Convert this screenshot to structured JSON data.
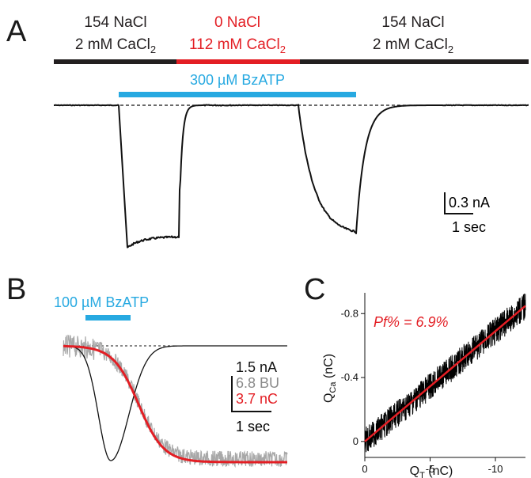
{
  "panels": {
    "A": {
      "letter": "A",
      "conditions": [
        {
          "line1": "154 NaCl",
          "line2_main": "2 mM CaCl",
          "line2_sub": "2",
          "color": "#231f20"
        },
        {
          "line1": "0 NaCl",
          "line2_main": "112 mM CaCl",
          "line2_sub": "2",
          "color": "#e31e24"
        },
        {
          "line1": "154 NaCl",
          "line2_main": "2 mM CaCl",
          "line2_sub": "2",
          "color": "#231f20"
        }
      ],
      "agonist_label": "300 µM BzATP",
      "agonist_color": "#27a9e1",
      "scale_current": "0.3 nA",
      "scale_time": "1 sec"
    },
    "B": {
      "letter": "B",
      "agonist_label": "100 µM BzATP",
      "agonist_color": "#27a9e1",
      "scale_labels": [
        {
          "text": "1.5 nA",
          "color": "#111111"
        },
        {
          "text": "6.8 BU",
          "color": "#8a8a8a"
        },
        {
          "text": "3.7 nC",
          "color": "#e31e24"
        }
      ],
      "scale_time": "1 sec"
    },
    "C": {
      "letter": "C",
      "annotation": "Pf% = 6.9%",
      "annotation_color": "#e31e24"
    }
  },
  "chart_data": [
    {
      "type": "line",
      "panel": "A",
      "series": [
        {
          "name": "",
          "note": "whole-cell current trace with two inward responses to BzATP",
          "peak_relative": [
            -1.0,
            -0.93
          ],
          "color": "#000000"
        }
      ]
    },
    {
      "type": "line",
      "panel": "B",
      "series": [
        {
          "name": "",
          "unit": "nA",
          "color": "#000000",
          "peak_relative": -1.0
        },
        {
          "name": "",
          "unit": "BU",
          "color": "#9a9a9a",
          "final_relative": -0.95
        },
        {
          "name": "",
          "unit": "nC",
          "color": "#e31e24",
          "final_relative": -0.95
        }
      ]
    },
    {
      "type": "scatter",
      "panel": "C",
      "xlabel_main": "Q",
      "xlabel_sub": "T",
      "xlabel_unit": " (nC)",
      "ylabel_main": "Q",
      "ylabel_sub": "Ca",
      "ylabel_unit": " (nC)",
      "x_ticks": [
        0,
        -5,
        -10
      ],
      "y_ticks": [
        0,
        -0.4,
        -0.8
      ],
      "xlim": [
        0,
        -12.3
      ],
      "ylim": [
        0.1,
        -0.93
      ],
      "fit": {
        "slope": 0.069,
        "intercept": 0,
        "color": "#e31e24"
      },
      "x_range": [
        0,
        -12.3
      ]
    }
  ]
}
